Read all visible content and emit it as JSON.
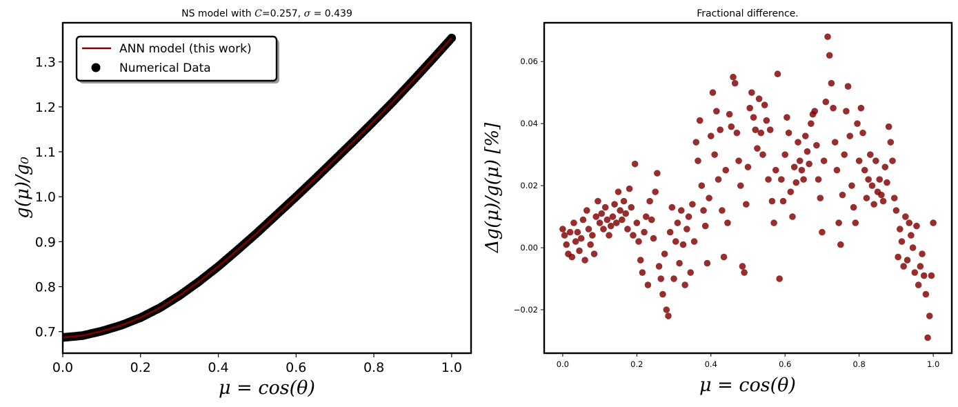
{
  "chart_data": [
    {
      "type": "line+scatter",
      "title": "NS model with C=0.257, σ = 0.439",
      "xlabel": "μ = cos(θ)",
      "ylabel": "g(μ)/g₀",
      "xlim": [
        0.0,
        1.05
      ],
      "ylim": [
        0.652,
        1.387
      ],
      "xticks": [
        "0.0",
        "0.2",
        "0.4",
        "0.6",
        "0.8",
        "1.0"
      ],
      "yticks": [
        "0.7",
        "0.8",
        "0.9",
        "1.0",
        "1.1",
        "1.2",
        "1.3"
      ],
      "legend_position": "top-left",
      "series": [
        {
          "name": "ANN model (this work)",
          "kind": "line",
          "color": "#800000",
          "x": [
            0.0,
            0.05,
            0.1,
            0.15,
            0.2,
            0.25,
            0.3,
            0.35,
            0.4,
            0.45,
            0.5,
            0.55,
            0.6,
            0.65,
            0.7,
            0.75,
            0.8,
            0.85,
            0.9,
            0.95,
            1.0
          ],
          "y": [
            0.687,
            0.691,
            0.701,
            0.714,
            0.731,
            0.753,
            0.78,
            0.811,
            0.845,
            0.882,
            0.92,
            0.96,
            1.0,
            1.041,
            1.083,
            1.125,
            1.168,
            1.212,
            1.258,
            1.305,
            1.353
          ]
        },
        {
          "name": "Numerical Data",
          "kind": "scatter",
          "color": "#000000",
          "x": [
            0.0,
            0.05,
            0.1,
            0.15,
            0.2,
            0.25,
            0.3,
            0.35,
            0.4,
            0.45,
            0.5,
            0.55,
            0.6,
            0.65,
            0.7,
            0.75,
            0.8,
            0.85,
            0.9,
            0.95,
            1.0
          ],
          "y": [
            0.687,
            0.691,
            0.701,
            0.714,
            0.731,
            0.753,
            0.78,
            0.811,
            0.845,
            0.882,
            0.92,
            0.96,
            1.0,
            1.041,
            1.083,
            1.125,
            1.168,
            1.212,
            1.258,
            1.305,
            1.353
          ]
        }
      ]
    },
    {
      "type": "scatter",
      "title": "Fractional difference.",
      "xlabel": "μ = cos(θ)",
      "ylabel": "Δg(μ)/g(μ) [%]",
      "xlim": [
        -0.05,
        1.05
      ],
      "ylim": [
        -0.034,
        0.0725
      ],
      "xticks": [
        "0.0",
        "0.2",
        "0.4",
        "0.6",
        "0.8",
        "1.0"
      ],
      "yticks": [
        "−0.02",
        "0.00",
        "0.02",
        "0.04",
        "0.06"
      ],
      "series": [
        {
          "color": "#800000",
          "x": [
            0.0,
            0.005,
            0.01,
            0.015,
            0.02,
            0.025,
            0.03,
            0.035,
            0.04,
            0.045,
            0.05,
            0.055,
            0.06,
            0.065,
            0.07,
            0.075,
            0.08,
            0.085,
            0.09,
            0.095,
            0.1,
            0.105,
            0.11,
            0.115,
            0.12,
            0.125,
            0.13,
            0.135,
            0.14,
            0.145,
            0.15,
            0.155,
            0.16,
            0.165,
            0.17,
            0.175,
            0.18,
            0.185,
            0.19,
            0.195,
            0.2,
            0.205,
            0.21,
            0.215,
            0.22,
            0.225,
            0.23,
            0.235,
            0.24,
            0.245,
            0.25,
            0.255,
            0.26,
            0.265,
            0.27,
            0.275,
            0.28,
            0.285,
            0.29,
            0.295,
            0.3,
            0.305,
            0.31,
            0.315,
            0.32,
            0.325,
            0.33,
            0.335,
            0.34,
            0.345,
            0.35,
            0.355,
            0.36,
            0.365,
            0.37,
            0.375,
            0.38,
            0.385,
            0.39,
            0.395,
            0.4,
            0.405,
            0.41,
            0.415,
            0.42,
            0.425,
            0.43,
            0.435,
            0.44,
            0.445,
            0.45,
            0.455,
            0.46,
            0.465,
            0.47,
            0.475,
            0.48,
            0.485,
            0.49,
            0.495,
            0.5,
            0.505,
            0.51,
            0.515,
            0.52,
            0.525,
            0.53,
            0.535,
            0.54,
            0.545,
            0.55,
            0.555,
            0.56,
            0.565,
            0.57,
            0.575,
            0.58,
            0.585,
            0.59,
            0.595,
            0.6,
            0.605,
            0.61,
            0.615,
            0.62,
            0.625,
            0.63,
            0.635,
            0.64,
            0.645,
            0.65,
            0.655,
            0.66,
            0.665,
            0.67,
            0.675,
            0.68,
            0.685,
            0.69,
            0.695,
            0.7,
            0.705,
            0.71,
            0.715,
            0.72,
            0.725,
            0.73,
            0.735,
            0.74,
            0.745,
            0.75,
            0.755,
            0.76,
            0.765,
            0.77,
            0.775,
            0.78,
            0.785,
            0.79,
            0.795,
            0.8,
            0.805,
            0.81,
            0.815,
            0.82,
            0.825,
            0.83,
            0.835,
            0.84,
            0.845,
            0.85,
            0.855,
            0.86,
            0.865,
            0.87,
            0.875,
            0.88,
            0.885,
            0.89,
            0.895,
            0.9,
            0.905,
            0.91,
            0.915,
            0.92,
            0.925,
            0.93,
            0.935,
            0.94,
            0.945,
            0.95,
            0.955,
            0.96,
            0.965,
            0.97,
            0.975,
            0.98,
            0.985,
            0.99,
            0.995,
            1.0
          ],
          "y": [
            0.006,
            0.004,
            0.001,
            -0.002,
            0.005,
            -0.003,
            0.008,
            0.002,
            0.005,
            -0.001,
            0.003,
            0.009,
            -0.004,
            0.012,
            0.006,
            0.001,
            0.004,
            -0.002,
            0.01,
            0.015,
            0.008,
            0.011,
            0.006,
            0.013,
            0.009,
            0.004,
            0.007,
            0.01,
            0.014,
            0.008,
            0.018,
            0.012,
            0.009,
            0.015,
            0.011,
            0.006,
            0.019,
            0.013,
            0.004,
            0.027,
            0.008,
            0.002,
            -0.004,
            -0.008,
            0.005,
            0.01,
            -0.012,
            0.015,
            0.009,
            0.003,
            0.018,
            0.024,
            -0.006,
            -0.01,
            -0.015,
            -0.002,
            -0.02,
            -0.022,
            0.005,
            0.013,
            -0.01,
            0.002,
            0.008,
            -0.005,
            0.012,
            0.001,
            -0.012,
            0.006,
            0.01,
            -0.008,
            0.014,
            0.002,
            0.034,
            0.028,
            0.041,
            0.02,
            0.012,
            0.007,
            -0.005,
            0.016,
            0.036,
            0.05,
            0.03,
            0.044,
            0.022,
            0.038,
            0.012,
            -0.003,
            0.025,
            0.008,
            0.043,
            0.039,
            0.055,
            0.053,
            0.037,
            0.028,
            0.02,
            -0.006,
            -0.008,
            0.014,
            0.026,
            0.045,
            0.05,
            0.042,
            0.038,
            0.032,
            0.048,
            0.037,
            0.03,
            0.046,
            0.041,
            0.022,
            0.038,
            0.015,
            0.008,
            0.025,
            0.056,
            -0.01,
            0.022,
            0.015,
            0.03,
            0.042,
            0.037,
            0.018,
            0.01,
            0.026,
            0.021,
            0.034,
            0.028,
            0.025,
            0.022,
            0.036,
            0.031,
            0.027,
            0.04,
            0.043,
            0.044,
            0.033,
            0.022,
            0.016,
            0.005,
            0.028,
            0.047,
            0.068,
            0.062,
            0.053,
            0.045,
            0.034,
            0.025,
            0.008,
            0.001,
            0.017,
            0.03,
            0.044,
            0.052,
            0.036,
            0.02,
            0.013,
            0.008,
            0.04,
            0.028,
            0.045,
            0.037,
            0.025,
            0.016,
            0.022,
            0.03,
            0.02,
            0.014,
            0.028,
            0.018,
            0.022,
            0.017,
            0.015,
            0.026,
            0.021,
            0.039,
            0.034,
            0.028,
            0.016,
            0.012,
            -0.003,
            0.006,
            0.002,
            -0.006,
            0.01,
            -0.004,
            0.008,
            0.004,
            0.0,
            -0.008,
            0.007,
            -0.012,
            -0.006,
            -0.002,
            -0.009,
            -0.015,
            -0.029,
            -0.022,
            -0.009,
            0.008
          ]
        }
      ]
    }
  ]
}
